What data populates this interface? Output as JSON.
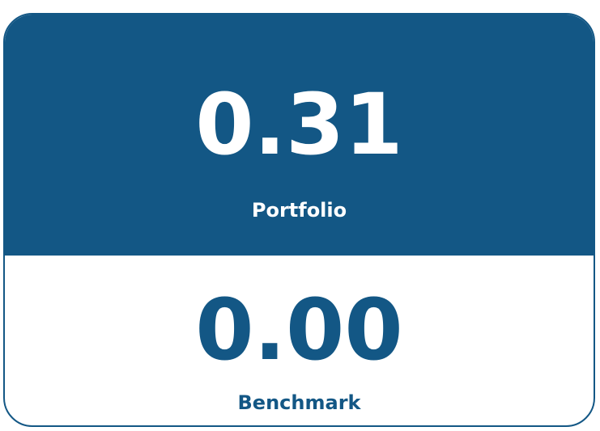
{
  "portfolio": {
    "value": "0.31",
    "label": "Portfolio"
  },
  "benchmark": {
    "value": "0.00",
    "label": "Benchmark"
  }
}
